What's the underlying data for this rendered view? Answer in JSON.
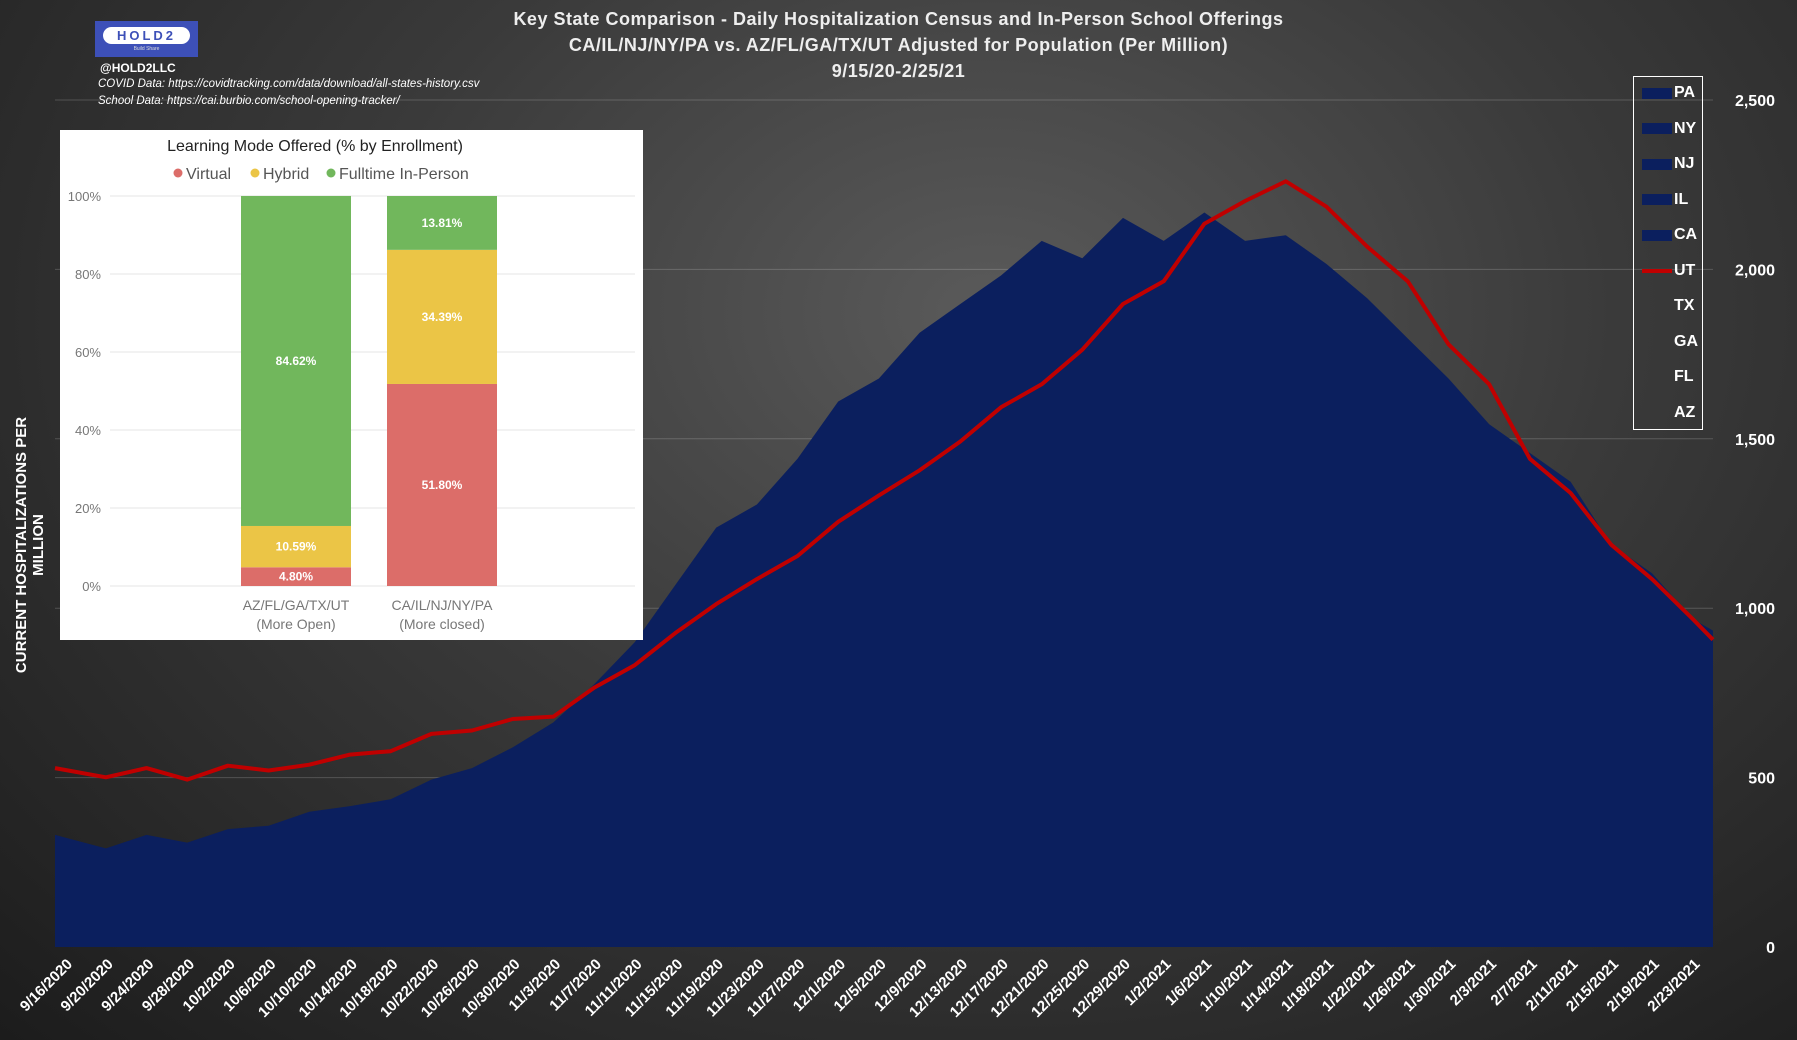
{
  "header": {
    "title1": "Key State Comparison - Daily Hospitalization Census and In-Person School Offerings",
    "title2": "CA/IL/NJ/NY/PA vs. AZ/FL/GA/TX/UT Adjusted for Population (Per Million)",
    "title3": "9/15/20-2/25/21",
    "logo_text": "HOLD2",
    "logo_sub": "Build Share",
    "handle": "@HOLD2LLC",
    "covid_source": "COVID Data: https://covidtracking.com/data/download/all-states-history.csv",
    "school_source": "School Data: https://cai.burbio.com/school-opening-tracker/"
  },
  "colors": {
    "blue": "#0b1f5e",
    "red": "#c00000",
    "green": "#71b75c",
    "yellow": "#ebc546",
    "virtual": "#dc6d69"
  },
  "chart_data": [
    {
      "type": "area",
      "title": "Key State Comparison - Daily Hospitalization Census and In-Person School Offerings",
      "ylabel": "CURRENT HOSPITALIZATIONS PER MILLION",
      "ylim": [
        0,
        2500
      ],
      "yticks": [
        "0",
        "500",
        "1,000",
        "1,500",
        "2,000",
        "2,500"
      ],
      "ytick_values": [
        0,
        500,
        1000,
        1500,
        2000,
        2500
      ],
      "grid": true,
      "legend": [
        "PA",
        "NY",
        "NJ",
        "IL",
        "CA",
        "UT",
        "TX",
        "GA",
        "FL",
        "AZ"
      ],
      "legend_placement": "right",
      "xticks": [
        "9/16/2020",
        "9/20/2020",
        "9/24/2020",
        "9/28/2020",
        "10/2/2020",
        "10/6/2020",
        "10/10/2020",
        "10/14/2020",
        "10/18/2020",
        "10/22/2020",
        "10/26/2020",
        "10/30/2020",
        "11/3/2020",
        "11/7/2020",
        "11/11/2020",
        "11/15/2020",
        "11/19/2020",
        "11/23/2020",
        "11/27/2020",
        "12/1/2020",
        "12/5/2020",
        "12/9/2020",
        "12/13/2020",
        "12/17/2020",
        "12/21/2020",
        "12/25/2020",
        "12/29/2020",
        "1/2/2021",
        "1/6/2021",
        "1/10/2021",
        "1/14/2021",
        "1/18/2021",
        "1/22/2021",
        "1/26/2021",
        "1/30/2021",
        "2/3/2021",
        "2/7/2021",
        "2/11/2021",
        "2/15/2021",
        "2/19/2021",
        "2/23/2021"
      ],
      "x_start": "2020-09-15",
      "x_end": "2021-02-25",
      "series": [
        {
          "name": "CA/IL/NJ/NY/PA",
          "type": "area",
          "values": [
            331,
            291,
            331,
            308,
            348,
            358,
            399,
            416,
            436,
            494,
            528,
            589,
            663,
            775,
            900,
            1069,
            1238,
            1306,
            1441,
            1610,
            1678,
            1813,
            1898,
            1982,
            2084,
            2033,
            2152,
            2084,
            2168,
            2084,
            2101,
            2016,
            1915,
            1796,
            1678,
            1543,
            1458,
            1373,
            1187,
            1103,
            968,
            934
          ]
        },
        {
          "name": "AZ/FL/GA/TX/UT",
          "type": "line",
          "values": [
            528,
            501,
            528,
            494,
            535,
            521,
            538,
            568,
            578,
            629,
            639,
            673,
            680,
            765,
            832,
            927,
            1012,
            1086,
            1154,
            1255,
            1333,
            1407,
            1492,
            1593,
            1661,
            1763,
            1898,
            1965,
            2135,
            2202,
            2260,
            2185,
            2067,
            1965,
            1779,
            1661,
            1441,
            1340,
            1187,
            1086,
            968,
            907
          ]
        }
      ]
    },
    {
      "type": "bar",
      "stacked": true,
      "title": "Learning Mode Offered (% by Enrollment)",
      "legend": [
        "Virtual",
        "Hybrid",
        "Fulltime In-Person"
      ],
      "legend_placement": "top",
      "ylim": [
        0,
        100
      ],
      "yticks": [
        "0%",
        "20%",
        "40%",
        "60%",
        "80%",
        "100%"
      ],
      "categories": [
        {
          "line1": "AZ/FL/GA/TX/UT",
          "line2": "(More Open)"
        },
        {
          "line1": "CA/IL/NJ/NY/PA",
          "line2": "(More closed)"
        }
      ],
      "series": [
        {
          "name": "Virtual",
          "values": [
            4.8,
            51.8
          ],
          "labels": [
            "4.80%",
            "51.80%"
          ]
        },
        {
          "name": "Hybrid",
          "values": [
            10.59,
            34.39
          ],
          "labels": [
            "10.59%",
            "34.39%"
          ]
        },
        {
          "name": "Fulltime In-Person",
          "values": [
            84.62,
            13.81
          ],
          "labels": [
            "84.62%",
            "13.81%"
          ]
        }
      ]
    }
  ]
}
